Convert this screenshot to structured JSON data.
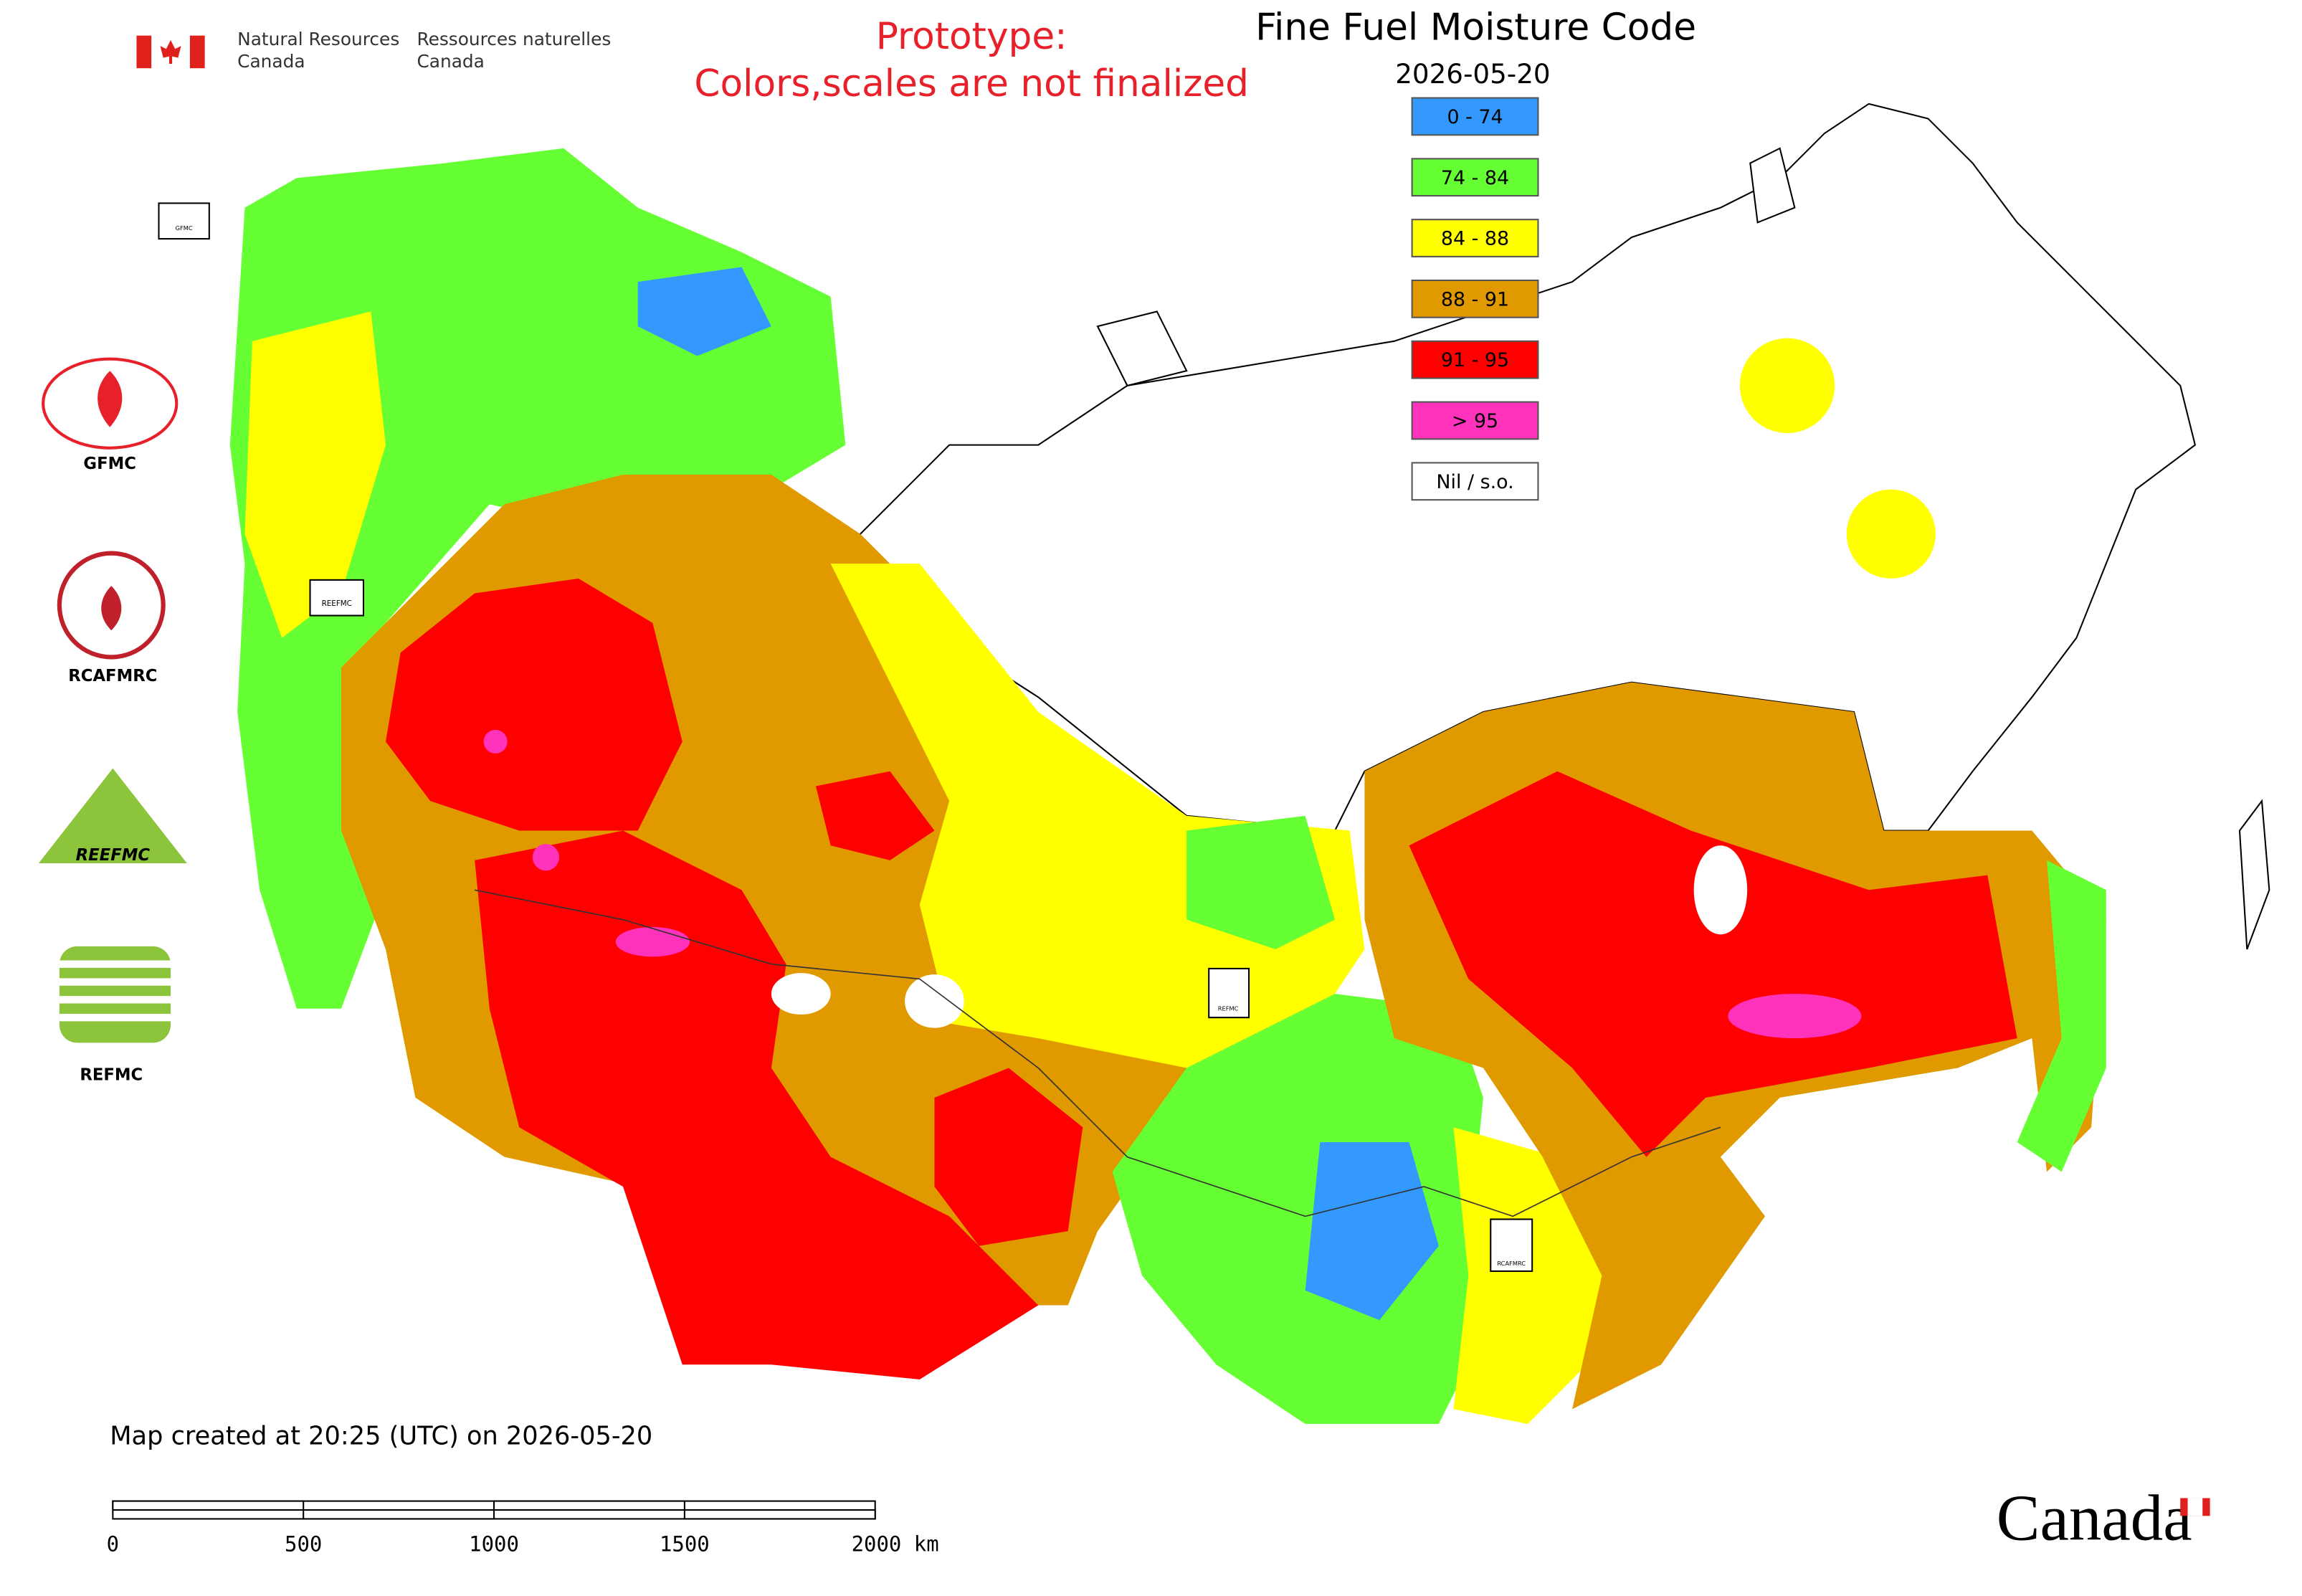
{
  "header": {
    "department_en": [
      "Natural Resources",
      "Canada"
    ],
    "department_fr": [
      "Ressources naturelles",
      "Canada"
    ],
    "notice": [
      "Prototype:",
      "Colors,scales are not finalized"
    ],
    "title": "Fine Fuel Moisture Code",
    "date": "2026-05-20"
  },
  "legend": {
    "items": [
      {
        "label": "0 - 74",
        "color": "#3399ff"
      },
      {
        "label": "74 - 84",
        "color": "#66ff33"
      },
      {
        "label": "84 - 88",
        "color": "#ffff00"
      },
      {
        "label": "88 - 91",
        "color": "#e09a00"
      },
      {
        "label": "91 - 95",
        "color": "#ff0000"
      },
      {
        "label": "> 95",
        "color": "#ff33bb"
      },
      {
        "label": "Nil / s.o.",
        "color": "#ffffff"
      }
    ]
  },
  "partner_logos": [
    "GFMC",
    "RCAFMRC",
    "REEFMC",
    "REFMC"
  ],
  "footer": {
    "created": "Map created at 20:25 (UTC) on 2026-05-20",
    "scale_labels": [
      "0",
      "500",
      "1000",
      "1500",
      "2000 km"
    ],
    "wordmark": "Canada"
  }
}
